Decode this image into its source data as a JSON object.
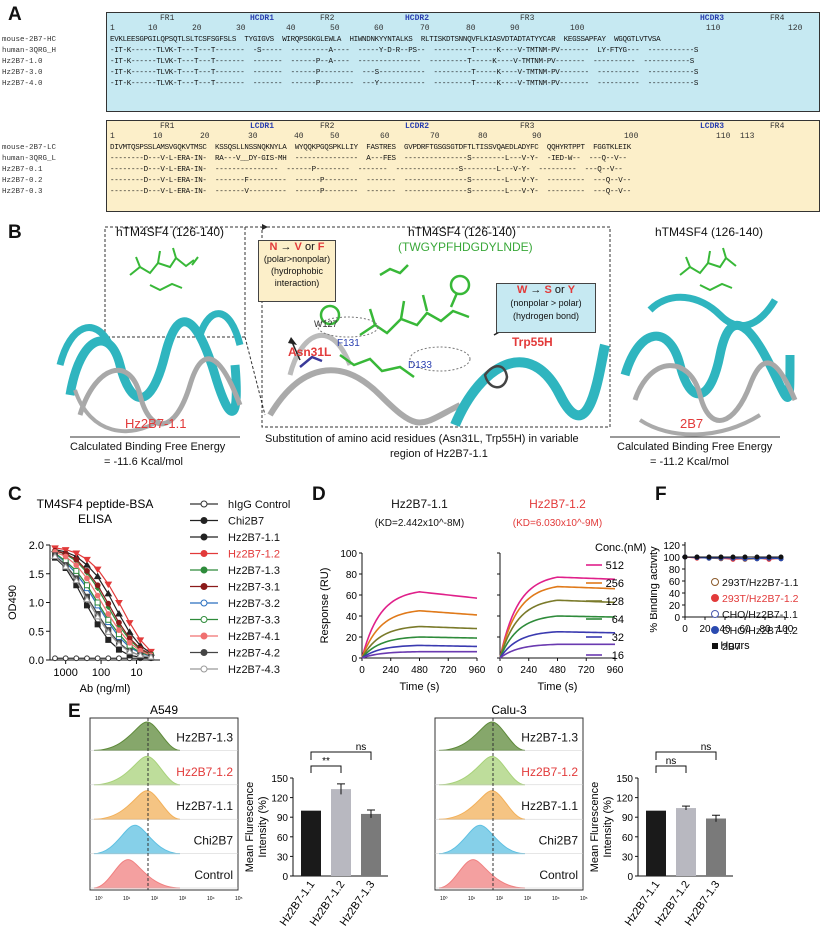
{
  "panel_labels": [
    "A",
    "B",
    "C",
    "D",
    "E",
    "F"
  ],
  "colors": {
    "heavy_bg": "#c6e9f2",
    "light_bg": "#fcefc9",
    "red": "#e23a3a",
    "blue_cdr": "#2a3fb0",
    "green": "#3aa83a",
    "teal": "#1aa3ad"
  },
  "panel_a": {
    "heavy": {
      "regions": [
        {
          "name": "FR1",
          "cdr": false
        },
        {
          "name": "HCDR1",
          "cdr": true
        },
        {
          "name": "FR2",
          "cdr": false
        },
        {
          "name": "HCDR2",
          "cdr": true
        },
        {
          "name": "FR3",
          "cdr": false
        },
        {
          "name": "HCDR3",
          "cdr": true
        },
        {
          "name": "FR4",
          "cdr": false
        }
      ],
      "numbers": [
        "1",
        "10",
        "20",
        "30",
        "40",
        "50",
        "60",
        "70",
        "80",
        "90",
        "100",
        "110",
        "120"
      ],
      "rows": [
        {
          "name": "mouse-2B7-HC",
          "seq": "EVKLEESGPGILQPSQTLSLTCSFSGFSLS  TYGIGVS  WIRQPSGKGLEWLA  HIWNDNKYYNTALKS  RLTISKDTSNNQVFLKIASVDTADTATYYCAR  KEGSSAPFAY  WGQGTLVTVSA"
        },
        {
          "name": "human-3QRG_H",
          "seq": "-IT-K------TLVK-T---T---T-------  -S-----  ---------A----  -----Y-D-R--PS--  ---------T-----K----V-TMTNM-PV-------  LY-FTYG---  -----------S"
        },
        {
          "name": "Hz2B7-1.0",
          "seq": "-IT-K------TLVK-T---T---T-------  -------  ------P--A----  ---------------  ---------T-----K----V-TMTNM-PV-------  ----------  -----------S"
        },
        {
          "name": "Hz2B7-3.0",
          "seq": "-IT-K------TLVK-T---T---T-------  -------  ------P--------  ---S-----------  ---------T-----K----V-TMTNM-PV-------  ----------  -----------S"
        },
        {
          "name": "Hz2B7-4.0",
          "seq": "-IT-K------TLVK-T---T---T-------  -------  ------P--------  ---Y-----------  ---------T-----K----V-TMTNM-PV-------  ----------  -----------S"
        }
      ]
    },
    "light": {
      "regions": [
        {
          "name": "FR1",
          "cdr": false
        },
        {
          "name": "LCDR1",
          "cdr": true
        },
        {
          "name": "FR2",
          "cdr": false
        },
        {
          "name": "LCDR2",
          "cdr": true
        },
        {
          "name": "FR3",
          "cdr": false
        },
        {
          "name": "LCDR3",
          "cdr": true
        },
        {
          "name": "FR4",
          "cdr": false
        }
      ],
      "numbers": [
        "1",
        "10",
        "20",
        "30",
        "40",
        "50",
        "60",
        "70",
        "80",
        "90",
        "100",
        "110",
        "113"
      ],
      "rows": [
        {
          "name": "mouse-2B7-LC",
          "seq": "DIVMTQSPSSLAMSVGQKVTMSC  KSSQSLLNSSNQKNYLA  WYQQKPGQSPKLLIY  FASTRES  GVPDRFTGSGSGTDFTLTISSVQAEDLADYFC  QQHYRTPPT  FGGTKLEIK"
        },
        {
          "name": "human-3QRG_L",
          "seq": "--------D---V-L-ERA-IN-  RA---V__DY-GIS-MH  ---------------  A---FES  ---------------S--------L---V-Y-  -IED-W--  ---Q--V--"
        },
        {
          "name": "Hz2B7-0.1",
          "seq": "--------D---V-L-ERA-IN-  ---------------  ------P--------  -------  ---------------S--------L---V-Y-  ---------  ---Q--V--"
        },
        {
          "name": "Hz2B7-0.2",
          "seq": "--------D---V-L-ERA-IN-  -------F---------  ------P--------  -------  ---------------S--------L---V-Y-  ---------  ---Q--V--"
        },
        {
          "name": "Hz2B7-0.3",
          "seq": "--------D---V-L-ERA-IN-  -------V---------  ------P--------  -------  ---------------S--------L---V-Y-  ---------  ---Q--V--"
        }
      ]
    }
  },
  "panel_b": {
    "left_title": "hTM4SF4 (126-140)",
    "left_name": "Hz2B7-1.1",
    "left_energy_label": "Calculated Binding Free Energy",
    "left_energy_value": "= -11.6 Kcal/mol",
    "center_title": "hTM4SF4 (126-140)",
    "center_seq": "(TWGYPFHDGDYLNDE)",
    "box1_line1_a": "N",
    "box1_line1_b": " → ",
    "box1_line1_c": "V",
    "box1_line1_d": " or ",
    "box1_line1_e": "F",
    "box1_line2": "(polar>nonpolar)",
    "box1_line3": "(hydrophobic",
    "box1_line4": "interaction)",
    "box2_line1_a": "W",
    "box2_line1_b": " → ",
    "box2_line1_c": "S",
    "box2_line1_d": " or ",
    "box2_line1_e": "Y",
    "box2_line2": "(nonpolar > polar)",
    "box2_line3": "(hydrogen bond)",
    "residue_w127": "W127",
    "residue_f131": "F131",
    "residue_d133": "D133",
    "mut1": "Asn31L",
    "mut2": "Trp55H",
    "caption_line1": "Substitution of amino acid residues (Asn31L, Trp55H)  in variable",
    "caption_line2": "region of Hz2B7-1.1",
    "right_title": "hTM4SF4 (126-140)",
    "right_name": "2B7",
    "right_energy_label": "Calculated Binding Free Energy",
    "right_energy_value": "= -11.2 Kcal/mol"
  },
  "chart_data": [
    {
      "id": "C",
      "type": "line",
      "title": "TM4SF4 peptide-BSA",
      "subtitle": "ELISA",
      "xlabel": "Ab (ng/ml)",
      "ylabel": "OD490",
      "x_scale": "log-reversed",
      "xticks": [
        "1000",
        "100",
        "10"
      ],
      "ylim": [
        0,
        2.0
      ],
      "yticks": [
        "0.0",
        "0.5",
        "1.0",
        "1.5",
        "2.0"
      ],
      "x": [
        2000,
        1000,
        500,
        250,
        125,
        62.5,
        31.25,
        15.6,
        7.8,
        3.9
      ],
      "series": [
        {
          "name": "hIgG Control",
          "color": "#333333",
          "marker": "open-circle",
          "values": [
            0.03,
            0.03,
            0.03,
            0.03,
            0.03,
            0.03,
            0.03,
            0.03,
            0.03,
            0.03
          ]
        },
        {
          "name": "Chi2B7",
          "color": "#222222",
          "marker": "square",
          "values": [
            1.78,
            1.6,
            1.3,
            0.95,
            0.62,
            0.35,
            0.18,
            0.08,
            0.05,
            0.04
          ]
        },
        {
          "name": "Hz2B7-1.1",
          "color": "#222222",
          "marker": "triangle",
          "values": [
            1.92,
            1.88,
            1.8,
            1.65,
            1.45,
            1.15,
            0.8,
            0.48,
            0.25,
            0.12
          ]
        },
        {
          "name": "Hz2B7-1.2",
          "color": "#e23a3a",
          "marker": "inverted-triangle",
          "values": [
            1.95,
            1.92,
            1.86,
            1.75,
            1.58,
            1.32,
            1.0,
            0.65,
            0.35,
            0.15
          ]
        },
        {
          "name": "Hz2B7-1.3",
          "color": "#2e8b3a",
          "marker": "diamond",
          "values": [
            1.9,
            1.84,
            1.72,
            1.52,
            1.25,
            0.92,
            0.6,
            0.35,
            0.18,
            0.09
          ]
        },
        {
          "name": "Hz2B7-3.1",
          "color": "#8b1a1a",
          "marker": "star",
          "values": [
            1.9,
            1.85,
            1.75,
            1.55,
            1.3,
            0.98,
            0.65,
            0.38,
            0.2,
            0.1
          ]
        },
        {
          "name": "Hz2B7-3.2",
          "color": "#2a6fbf",
          "marker": "open-square",
          "values": [
            1.85,
            1.7,
            1.5,
            1.25,
            0.95,
            0.66,
            0.4,
            0.22,
            0.12,
            0.07
          ]
        },
        {
          "name": "Hz2B7-3.3",
          "color": "#2e8b3a",
          "marker": "open-square",
          "values": [
            1.86,
            1.72,
            1.55,
            1.3,
            1.0,
            0.7,
            0.45,
            0.25,
            0.13,
            0.08
          ]
        },
        {
          "name": "Hz2B7-4.1",
          "color": "#f07070",
          "marker": "circle",
          "values": [
            1.88,
            1.8,
            1.65,
            1.42,
            1.12,
            0.8,
            0.52,
            0.3,
            0.16,
            0.08
          ]
        },
        {
          "name": "Hz2B7-4.2",
          "color": "#444444",
          "marker": "crossed-square",
          "values": [
            1.82,
            1.65,
            1.42,
            1.1,
            0.8,
            0.52,
            0.3,
            0.15,
            0.08,
            0.05
          ]
        },
        {
          "name": "Hz2B7-4.3",
          "color": "#999999",
          "marker": "open-triangle",
          "values": [
            1.8,
            1.62,
            1.38,
            1.05,
            0.75,
            0.48,
            0.27,
            0.14,
            0.08,
            0.05
          ]
        }
      ]
    },
    {
      "id": "D1",
      "type": "line",
      "title": "Hz2B7-1.1",
      "subtitle": "(KD=2.442x10^-8M)",
      "xlabel": "Time (s)",
      "ylabel": "Response (RU)",
      "xlim": [
        0,
        960
      ],
      "xticks": [
        0,
        240,
        480,
        720,
        960
      ],
      "ylim": [
        0,
        100
      ],
      "yticks": [
        0,
        20,
        40,
        60,
        80,
        100
      ],
      "series": [
        {
          "name": "512",
          "color": "#e0208a",
          "assoc_max": 63,
          "end": 57
        },
        {
          "name": "256",
          "color": "#e07a1a",
          "assoc_max": 45,
          "end": 41
        },
        {
          "name": "128",
          "color": "#7a7a2a",
          "assoc_max": 30,
          "end": 28
        },
        {
          "name": "64",
          "color": "#2e8b3a",
          "assoc_max": 20,
          "end": 19
        },
        {
          "name": "32",
          "color": "#3a3ab0",
          "assoc_max": 12,
          "end": 11
        },
        {
          "name": "16",
          "color": "#6a3ab0",
          "assoc_max": 6,
          "end": 6
        }
      ]
    },
    {
      "id": "D2",
      "type": "line",
      "title": "Hz2B7-1.2",
      "subtitle": "(KD=6.030x10^-9M)",
      "xlabel": "Time (s)",
      "ylabel": "",
      "xlim": [
        0,
        960
      ],
      "xticks": [
        0,
        240,
        480,
        720,
        960
      ],
      "ylim": [
        0,
        100
      ],
      "legend_title": "Conc.(nM)",
      "series": [
        {
          "name": "512",
          "color": "#e0208a",
          "assoc_max": 77,
          "end": 75
        },
        {
          "name": "256",
          "color": "#e07a1a",
          "assoc_max": 68,
          "end": 66
        },
        {
          "name": "128",
          "color": "#7a7a2a",
          "assoc_max": 55,
          "end": 53
        },
        {
          "name": "64",
          "color": "#2e8b3a",
          "assoc_max": 40,
          "end": 39
        },
        {
          "name": "32",
          "color": "#3a3ab0",
          "assoc_max": 25,
          "end": 24
        },
        {
          "name": "16",
          "color": "#6a3ab0",
          "assoc_max": 13,
          "end": 13
        }
      ]
    },
    {
      "id": "F",
      "type": "line",
      "xlabel": "Hours",
      "ylabel": "% Binding activity",
      "xlim": [
        0,
        100
      ],
      "xticks": [
        "0",
        "20",
        "40",
        "60",
        "80",
        "100"
      ],
      "ylim": [
        0,
        125
      ],
      "yticks": [
        "0",
        "20",
        "40",
        "60",
        "80",
        "100",
        "120"
      ],
      "x": [
        0,
        12,
        24,
        36,
        48,
        60,
        72,
        84,
        96
      ],
      "series": [
        {
          "name": "293T/Hz2B7-1.1",
          "color": "#8b5a2b",
          "marker": "open-circle",
          "values": [
            100,
            99,
            98,
            97,
            98,
            96,
            97,
            98,
            97
          ]
        },
        {
          "name": "293T/Hz2B7-1.2",
          "color": "#e23a3a",
          "marker": "circle",
          "values": [
            100,
            98,
            99,
            98,
            96,
            97,
            98,
            96,
            98
          ]
        },
        {
          "name": "CHO/Hz2B7-1.1",
          "color": "#4a5ab0",
          "marker": "open-circle",
          "values": [
            100,
            100,
            99,
            98,
            99,
            97,
            98,
            99,
            98
          ]
        },
        {
          "name": "CHO/Hz2B7-1.2",
          "color": "#2a4ab0",
          "marker": "circle",
          "values": [
            100,
            99,
            98,
            99,
            98,
            98,
            97,
            98,
            97
          ]
        },
        {
          "name": "2B7",
          "color": "#111111",
          "marker": "square",
          "values": [
            100,
            100,
            100,
            100,
            100,
            100,
            100,
            100,
            100
          ]
        }
      ]
    },
    {
      "id": "E-A549-bar",
      "type": "bar",
      "title": "A549",
      "ylabel": "Mean Flurescence Intensity (%)",
      "categories": [
        "Hz2B7-1.1",
        "Hz2B7-1.2",
        "Hz2B7-1.3"
      ],
      "values": [
        100,
        133,
        95
      ],
      "errors": [
        0,
        8,
        6
      ],
      "colors": [
        "#1a1a1a",
        "#b8b8c0",
        "#7a7a7a"
      ],
      "ylim": [
        0,
        150
      ],
      "yticks": [
        "0",
        "30",
        "60",
        "90",
        "120",
        "150"
      ],
      "significance": [
        "**",
        "ns"
      ]
    },
    {
      "id": "E-Calu3-bar",
      "type": "bar",
      "title": "Calu-3",
      "ylabel": "Mean Flurescence Intensity (%)",
      "categories": [
        "Hz2B7-1.1",
        "Hz2B7-1.2",
        "Hz2B7-1.3"
      ],
      "values": [
        100,
        104,
        88
      ],
      "errors": [
        0,
        3,
        5
      ],
      "colors": [
        "#1a1a1a",
        "#b8b8c0",
        "#7a7a7a"
      ],
      "ylim": [
        0,
        150
      ],
      "yticks": [
        "0",
        "30",
        "60",
        "90",
        "120",
        "150"
      ],
      "significance": [
        "ns",
        "ns"
      ]
    }
  ],
  "panel_e": {
    "a549_title": "A549",
    "calu3_title": "Calu-3",
    "histogram_labels": [
      "Hz2B7-1.3",
      "Hz2B7-1.2",
      "Hz2B7-1.1",
      "Chi2B7",
      "Control"
    ],
    "histogram_colors": [
      "#5e8a3a",
      "#a8d27a",
      "#f2b05a",
      "#5ec0e2",
      "#f08080"
    ],
    "axis_ticks": [
      "10⁰",
      "10¹",
      "10²",
      "10³",
      "10⁴",
      "10⁵"
    ]
  }
}
